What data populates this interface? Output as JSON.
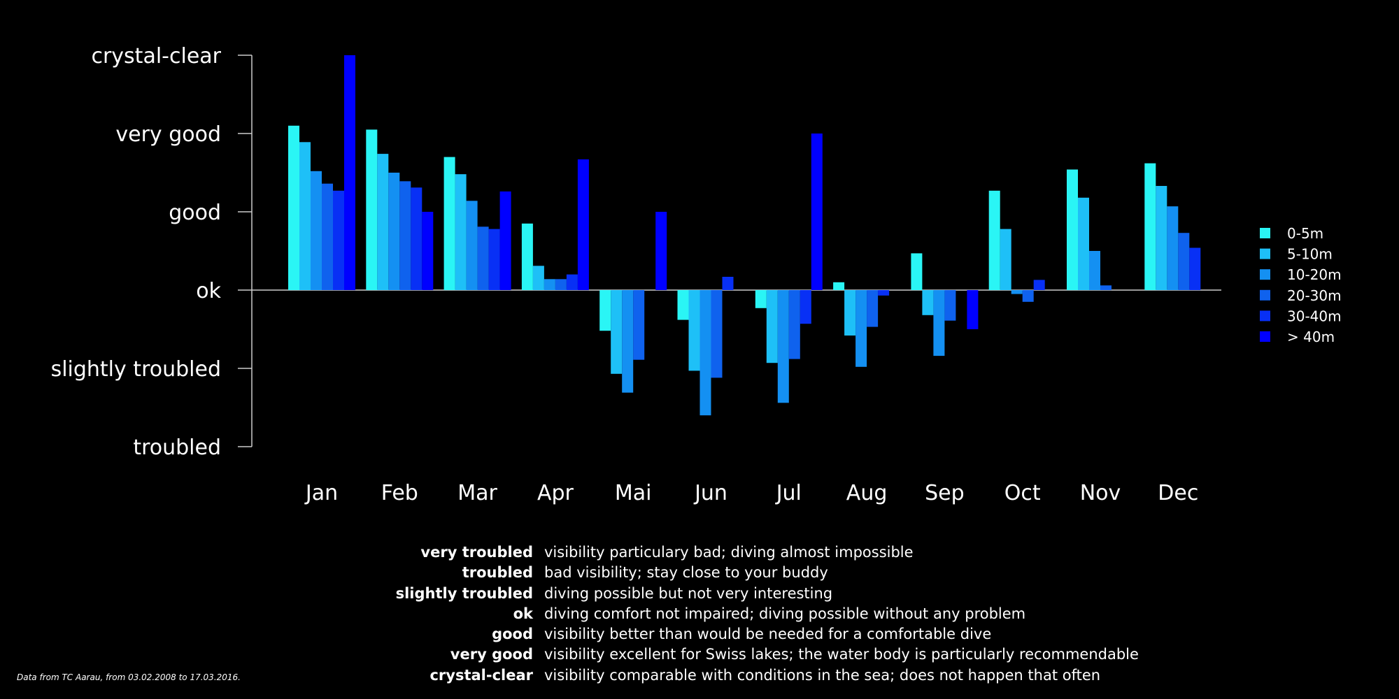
{
  "chart_data": {
    "type": "bar",
    "title": "",
    "xlabel": "",
    "ylabel": "",
    "categories": [
      "Jan",
      "Feb",
      "Mar",
      "Apr",
      "Mai",
      "Jun",
      "Jul",
      "Aug",
      "Sep",
      "Oct",
      "Nov",
      "Dec"
    ],
    "yticks": [
      {
        "value": 3,
        "label": "crystal-clear"
      },
      {
        "value": 2,
        "label": "very good"
      },
      {
        "value": 1,
        "label": "good"
      },
      {
        "value": 0,
        "label": "ok"
      },
      {
        "value": -1,
        "label": "slightly troubled"
      },
      {
        "value": -2,
        "label": "troubled"
      }
    ],
    "ylim": [
      -2,
      3
    ],
    "grid": false,
    "legend_position": "right",
    "series": [
      {
        "name": "0-5m",
        "color": "#2af5f5",
        "values": [
          2.1,
          2.05,
          1.7,
          0.85,
          -0.52,
          -0.38,
          -0.23,
          0.1,
          0.47,
          1.27,
          1.54,
          1.62
        ]
      },
      {
        "name": "5-10m",
        "color": "#1ec0f7",
        "values": [
          1.89,
          1.74,
          1.48,
          0.31,
          -1.07,
          -1.03,
          -0.93,
          -0.58,
          -0.32,
          0.78,
          1.18,
          1.33
        ]
      },
      {
        "name": "10-20m",
        "color": "#1490f2",
        "values": [
          1.52,
          1.5,
          1.14,
          0.14,
          -1.31,
          -1.6,
          -1.44,
          -0.98,
          -0.84,
          -0.05,
          0.5,
          1.07
        ]
      },
      {
        "name": "20-30m",
        "color": "#0f62ee",
        "values": [
          1.36,
          1.39,
          0.81,
          0.14,
          -0.89,
          -1.12,
          -0.88,
          -0.47,
          -0.39,
          -0.15,
          0.06,
          0.73
        ]
      },
      {
        "name": "30-40m",
        "color": "#0830f5",
        "values": [
          1.27,
          1.31,
          0.78,
          0.2,
          0,
          0.17,
          -0.43,
          -0.07,
          0,
          0.13,
          0,
          0.54
        ]
      },
      {
        "name": "> 40m",
        "color": "#0000ff",
        "values": [
          3.0,
          1.0,
          1.26,
          1.67,
          1.0,
          0,
          2.0,
          0,
          -0.5,
          0,
          0,
          0
        ]
      }
    ]
  },
  "glossary": [
    {
      "term": "very troubled",
      "desc": "visibility particulary bad; diving almost impossible"
    },
    {
      "term": "troubled",
      "desc": "bad visibility; stay close to your buddy"
    },
    {
      "term": "slightly troubled",
      "desc": "diving possible but not very interesting"
    },
    {
      "term": "ok",
      "desc": "diving comfort not impaired; diving possible without any problem"
    },
    {
      "term": "good",
      "desc": "visibility better than would be needed for a comfortable dive"
    },
    {
      "term": "very good",
      "desc": "visibility excellent for Swiss lakes; the water body is particularly recommendable"
    },
    {
      "term": "crystal-clear",
      "desc": "visibility comparable with conditions in the sea; does not happen that often"
    }
  ],
  "source_note": "Data from TC Aarau, from 03.02.2008 to 17.03.2016.",
  "colors": {
    "background": "#000000",
    "text": "#ffffff",
    "axis": "#cccccc"
  }
}
